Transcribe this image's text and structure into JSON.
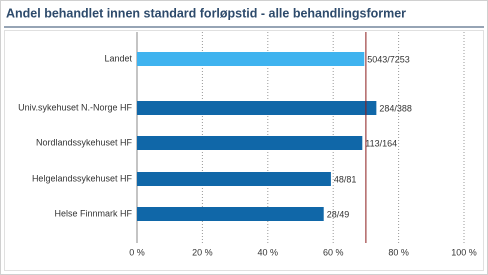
{
  "chart_data": {
    "type": "hbar",
    "title": "Andel behandlet innen standard forløpstid - alle behandlingsformer",
    "categories": [
      "Landet",
      "Univ.sykehuset N.-Norge HF",
      "Nordlandssykehuset HF",
      "Helgelandssykehuset HF",
      "Helse Finnmark HF"
    ],
    "values": [
      69.5,
      73.2,
      68.9,
      59.3,
      57.1
    ],
    "value_labels": [
      "5043/7253",
      "284/388",
      "113/164",
      "48/81",
      "28/49"
    ],
    "colors": [
      "#3fb3ef",
      "#1067a8",
      "#1067a8",
      "#1067a8",
      "#1067a8"
    ],
    "xlim": [
      0,
      100
    ],
    "xticks": [
      {
        "value": 0,
        "label": "0 %"
      },
      {
        "value": 20,
        "label": "20 %"
      },
      {
        "value": 40,
        "label": "40 %"
      },
      {
        "value": 60,
        "label": "60 %"
      },
      {
        "value": 80,
        "label": "80 %"
      },
      {
        "value": 100,
        "label": "100 %"
      }
    ],
    "target_line": 70,
    "target_color": "#8b1a1a",
    "grid": true
  }
}
